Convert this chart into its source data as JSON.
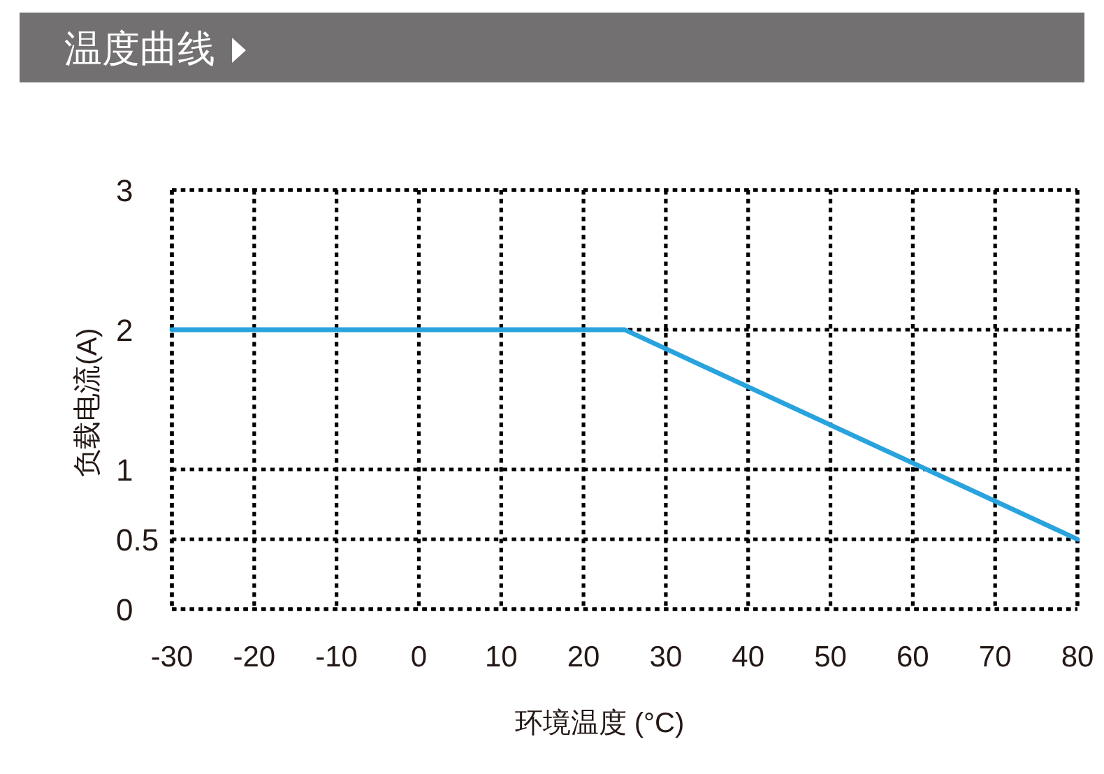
{
  "chart_data": {
    "type": "line",
    "title": "温度曲线",
    "xlabel": "环境温度 (°C)",
    "ylabel": "负载电流(A)",
    "x": [
      -30,
      25,
      80
    ],
    "series": [
      {
        "color": "#29a3de",
        "values": [
          2,
          2,
          0.5
        ]
      }
    ],
    "xlim": [
      -30,
      80
    ],
    "xticks": [
      -30,
      -20,
      -10,
      0,
      10,
      20,
      30,
      40,
      50,
      60,
      70,
      80
    ],
    "ylim": [
      0,
      3
    ],
    "yticks": [
      0,
      0.5,
      1,
      2,
      3
    ],
    "grid": true,
    "marker": "none",
    "line_style": "solid"
  }
}
